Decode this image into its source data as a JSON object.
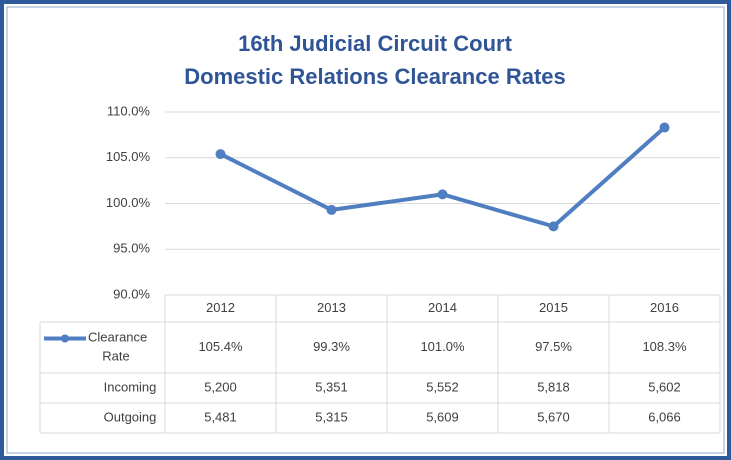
{
  "chart_data": {
    "type": "line",
    "title": "16th Judicial Circuit Court",
    "subtitle": "Domestic Relations Clearance Rates",
    "categories": [
      "2012",
      "2013",
      "2014",
      "2015",
      "2016"
    ],
    "series": [
      {
        "name": "Clearance Rate",
        "color": "#4f7fc0",
        "values": [
          105.4,
          99.3,
          101.0,
          97.5,
          108.3
        ],
        "value_labels": [
          "105.4%",
          "99.3%",
          "101.0%",
          "97.5%",
          "108.3%"
        ]
      }
    ],
    "ylim": [
      90,
      110
    ],
    "yticks": [
      {
        "value": 90,
        "label": "90.0%"
      },
      {
        "value": 95,
        "label": "95.0%"
      },
      {
        "value": 100,
        "label": "100.0%"
      },
      {
        "value": 105,
        "label": "105.0%"
      },
      {
        "value": 110,
        "label": "110.0%"
      }
    ],
    "grid": true,
    "table": {
      "rows": [
        {
          "name": "Incoming",
          "values": [
            5200,
            5351,
            5552,
            5818,
            5602
          ],
          "value_labels": [
            "5,200",
            "5,351",
            "5,552",
            "5,818",
            "5,602"
          ]
        },
        {
          "name": "Outgoing",
          "values": [
            5481,
            5315,
            5609,
            5670,
            6066
          ],
          "value_labels": [
            "5,481",
            "5,315",
            "5,609",
            "5,670",
            "6,066"
          ]
        }
      ]
    }
  }
}
